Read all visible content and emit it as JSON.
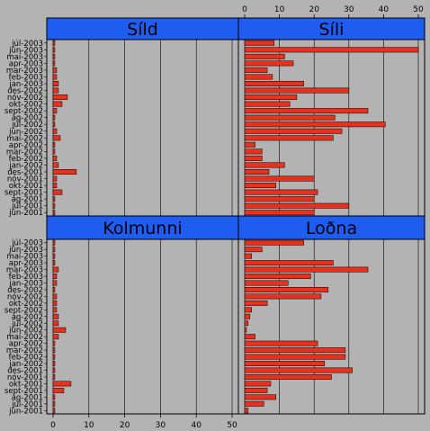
{
  "chart_data": {
    "type": "bar",
    "orientation": "horizontal",
    "xlim": [
      0,
      50
    ],
    "xticks": [
      0,
      10,
      20,
      30,
      40,
      50
    ],
    "grid": true,
    "bar_color": "#e8301c",
    "strip_color": "#1f5cf0",
    "background": "#b3b3b3",
    "categories": [
      "júl-2003",
      "jún-2003",
      "maí-2003",
      "apr-2003",
      "mar-2003",
      "feb-2003",
      "jan-2003",
      "des-2002",
      "nóv-2002",
      "okt-2002",
      "sept-2002",
      "ág-2002",
      "júl-2002",
      "jún-2002",
      "maí-2002",
      "apr-2002",
      "mar-2002",
      "feb-2002",
      "jan-2002",
      "des-2001",
      "nóv-2001",
      "okt-2001",
      "sept-2001",
      "ág-2001",
      "júl-2001",
      "jún-2001"
    ],
    "panels": [
      {
        "name": "Síld",
        "values": [
          0.5,
          0.5,
          0.5,
          0.5,
          1,
          1,
          1.5,
          1.5,
          4,
          2.5,
          1,
          0.5,
          0.5,
          1,
          2,
          0.5,
          0.5,
          1,
          1.5,
          6.5,
          1,
          1,
          2.5,
          0.5,
          0.5,
          0.5
        ]
      },
      {
        "name": "Síli",
        "values": [
          8.5,
          50,
          11.5,
          14,
          6.5,
          8,
          17,
          30,
          15,
          13,
          35.5,
          26,
          40.5,
          28,
          25.5,
          3,
          5,
          5,
          11.5,
          7,
          20,
          9,
          21,
          20,
          30,
          20
        ]
      },
      {
        "name": "Kolmunni",
        "values": [
          0.5,
          0.5,
          0.5,
          0.5,
          1.5,
          1,
          1,
          0.5,
          1,
          1,
          1,
          1.5,
          1.5,
          3.5,
          1.5,
          0.5,
          0.5,
          0.5,
          0.5,
          0.5,
          0.5,
          5,
          3,
          0.5,
          0.5,
          0.5
        ]
      },
      {
        "name": "Loðna",
        "values": [
          17,
          5,
          2,
          25.5,
          35.5,
          19,
          12.5,
          24,
          22,
          6.5,
          2,
          1.5,
          1,
          0.5,
          3,
          21,
          29,
          29,
          23,
          31,
          25,
          7.5,
          6.5,
          9,
          5.5,
          1
        ]
      }
    ]
  }
}
